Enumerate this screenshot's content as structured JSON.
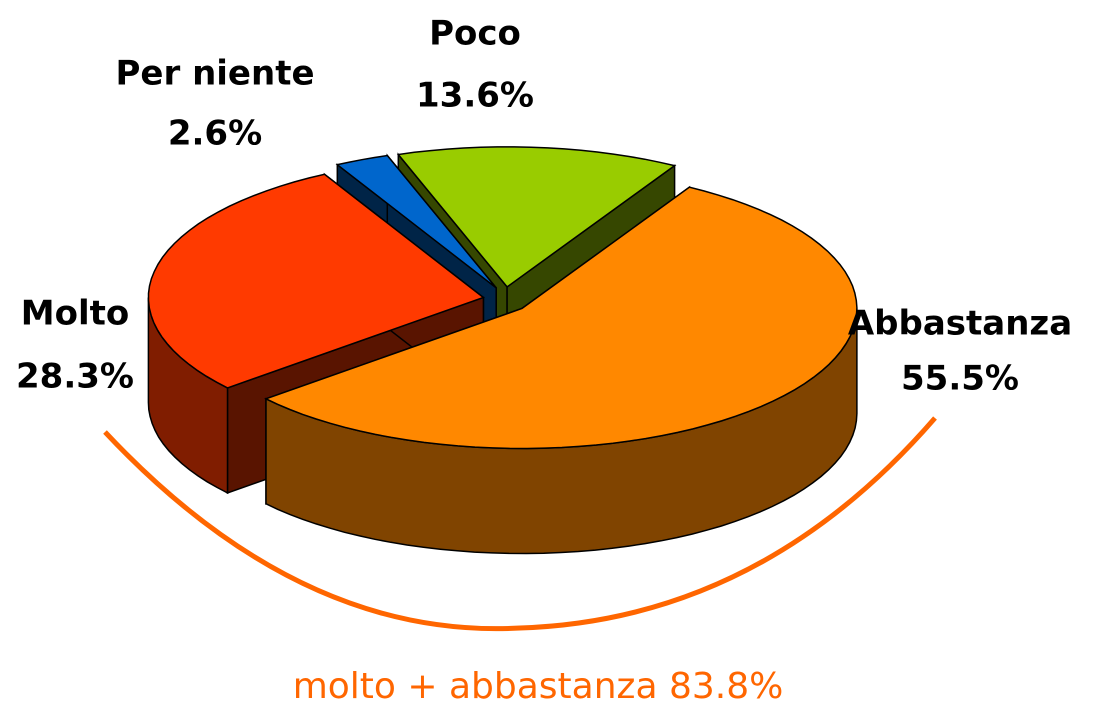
{
  "chart_data": {
    "type": "pie3d",
    "categories": [
      "Abbastanza",
      "Molto",
      "Per niente",
      "Poco"
    ],
    "values": [
      55.5,
      28.3,
      2.6,
      13.6
    ],
    "value_labels": [
      "55.5%",
      "28.3%",
      "2.6%",
      "13.6%"
    ],
    "colors": [
      "#ff8800",
      "#ff3a00",
      "#0066cc",
      "#99cc00"
    ],
    "annotation": "molto + abbastanza 83.8%",
    "annotation_color": "#ff6600"
  }
}
